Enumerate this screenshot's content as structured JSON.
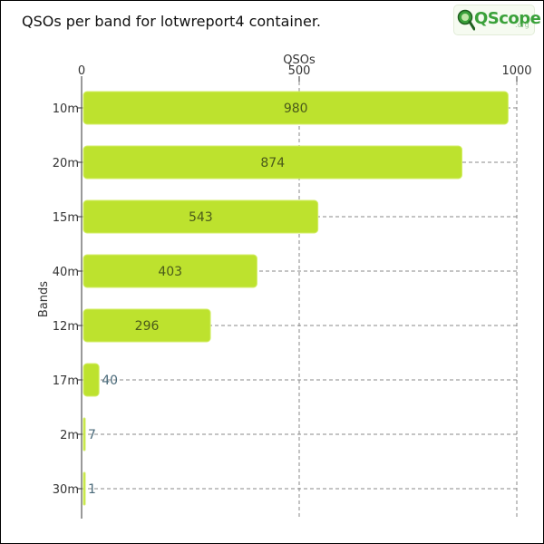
{
  "header": {
    "title": "QSOs per band for lotwreport4 container.",
    "logo_text": "QScope",
    "logo_suffix": ".org"
  },
  "colors": {
    "bar_fill": "#bde22e",
    "bar_stroke": "#d4ee6a",
    "grid": "#888888",
    "axis": "#333333",
    "label_in": "#4a5a1a",
    "label_out": "#4a6a7a"
  },
  "chart_data": {
    "type": "bar",
    "orientation": "horizontal",
    "title": "QSOs per band for lotwreport4 container.",
    "xlabel": "QSOs",
    "ylabel": "Bands",
    "x_axis_position": "top",
    "xlim": [
      0,
      1000
    ],
    "xticks": [
      0,
      500,
      1000
    ],
    "grid": true,
    "categories": [
      "10m",
      "20m",
      "15m",
      "40m",
      "12m",
      "17m",
      "2m",
      "30m"
    ],
    "values": [
      980,
      874,
      543,
      403,
      296,
      40,
      7,
      1
    ]
  }
}
